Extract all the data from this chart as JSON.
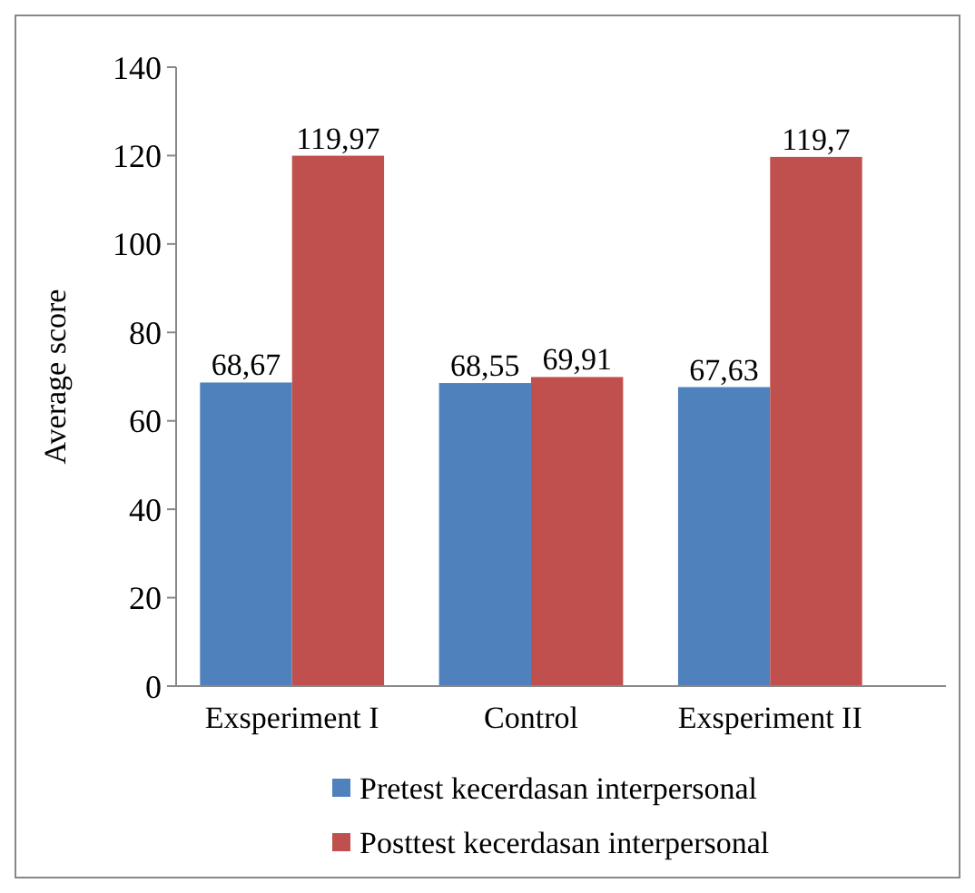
{
  "chart_data": {
    "type": "bar",
    "ylabel": "Average score",
    "categories": [
      "Exsperiment I",
      "Control",
      "Exsperiment II"
    ],
    "series": [
      {
        "name": "Pretest kecerdasan interpersonal",
        "color": "#4f81bd",
        "values": [
          68.67,
          68.55,
          67.63
        ],
        "value_labels": [
          "68,67",
          "68,55",
          "67,63"
        ]
      },
      {
        "name": "Posttest kecerdasan interpersonal",
        "color": "#c0504d",
        "values": [
          119.97,
          69.91,
          119.7
        ],
        "value_labels": [
          "119,97",
          "69,91",
          "119,7"
        ]
      }
    ],
    "ylim": [
      0,
      140
    ],
    "yticks": [
      0,
      20,
      40,
      60,
      80,
      100,
      120,
      140
    ],
    "grid": false,
    "legend": "bottom"
  }
}
